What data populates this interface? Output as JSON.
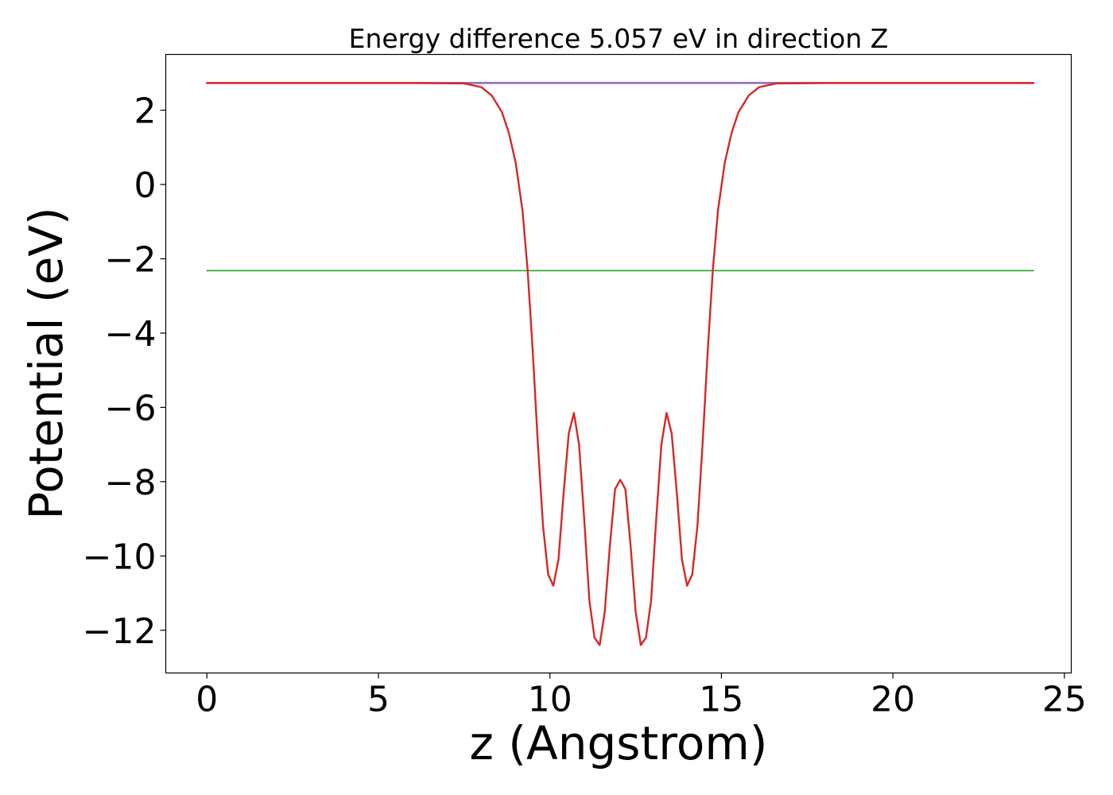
{
  "chart_data": {
    "type": "line",
    "title": "Energy difference 5.057 eV in direction Z",
    "xlabel": "z (Angstrom)",
    "ylabel": "Potential (eV)",
    "xlim": [
      -1.2,
      25.2
    ],
    "ylim": [
      -13.15,
      3.5
    ],
    "xticks": [
      0,
      5,
      10,
      15,
      20,
      25
    ],
    "yticks": [
      2,
      0,
      -2,
      -4,
      -6,
      -8,
      -10,
      -12
    ],
    "grid": false,
    "legend": false,
    "series": [
      {
        "kind": "hline",
        "color": "#1f77b4",
        "x": [
          0,
          24.1
        ],
        "y": [
          2.74,
          2.74
        ]
      },
      {
        "kind": "hline",
        "color": "#2ca02c",
        "x": [
          0,
          24.1
        ],
        "y": [
          -2.32,
          -2.32
        ]
      },
      {
        "kind": "curve",
        "color": "#9467bd",
        "x": [
          0,
          24.1
        ],
        "y": [
          2.73,
          2.73
        ]
      },
      {
        "kind": "curve",
        "color": "#d62728",
        "x": [
          0,
          6.0,
          7.5,
          8.0,
          8.3,
          8.6,
          8.8,
          9.0,
          9.2,
          9.35,
          9.5,
          9.65,
          9.8,
          9.95,
          10.1,
          10.25,
          10.4,
          10.55,
          10.7,
          10.85,
          11.0,
          11.15,
          11.3,
          11.45,
          11.6,
          11.75,
          11.9,
          12.05,
          12.2,
          12.35,
          12.5,
          12.65,
          12.8,
          12.95,
          13.1,
          13.25,
          13.4,
          13.55,
          13.7,
          13.85,
          14.0,
          14.15,
          14.3,
          14.45,
          14.6,
          14.75,
          14.9,
          15.1,
          15.3,
          15.5,
          15.8,
          16.1,
          16.6,
          18.0,
          24.1
        ],
        "y": [
          2.73,
          2.73,
          2.72,
          2.62,
          2.4,
          1.95,
          1.4,
          0.6,
          -0.7,
          -2.3,
          -4.5,
          -7.0,
          -9.2,
          -10.5,
          -10.8,
          -10.1,
          -8.3,
          -6.7,
          -6.15,
          -7.0,
          -9.0,
          -11.2,
          -12.2,
          -12.4,
          -11.5,
          -9.7,
          -8.2,
          -7.95,
          -8.2,
          -9.7,
          -11.5,
          -12.4,
          -12.2,
          -11.2,
          -9.0,
          -7.0,
          -6.15,
          -6.7,
          -8.3,
          -10.1,
          -10.8,
          -10.5,
          -9.2,
          -7.0,
          -4.5,
          -2.3,
          -0.7,
          0.6,
          1.4,
          1.95,
          2.4,
          2.62,
          2.72,
          2.73,
          2.73
        ]
      }
    ]
  }
}
